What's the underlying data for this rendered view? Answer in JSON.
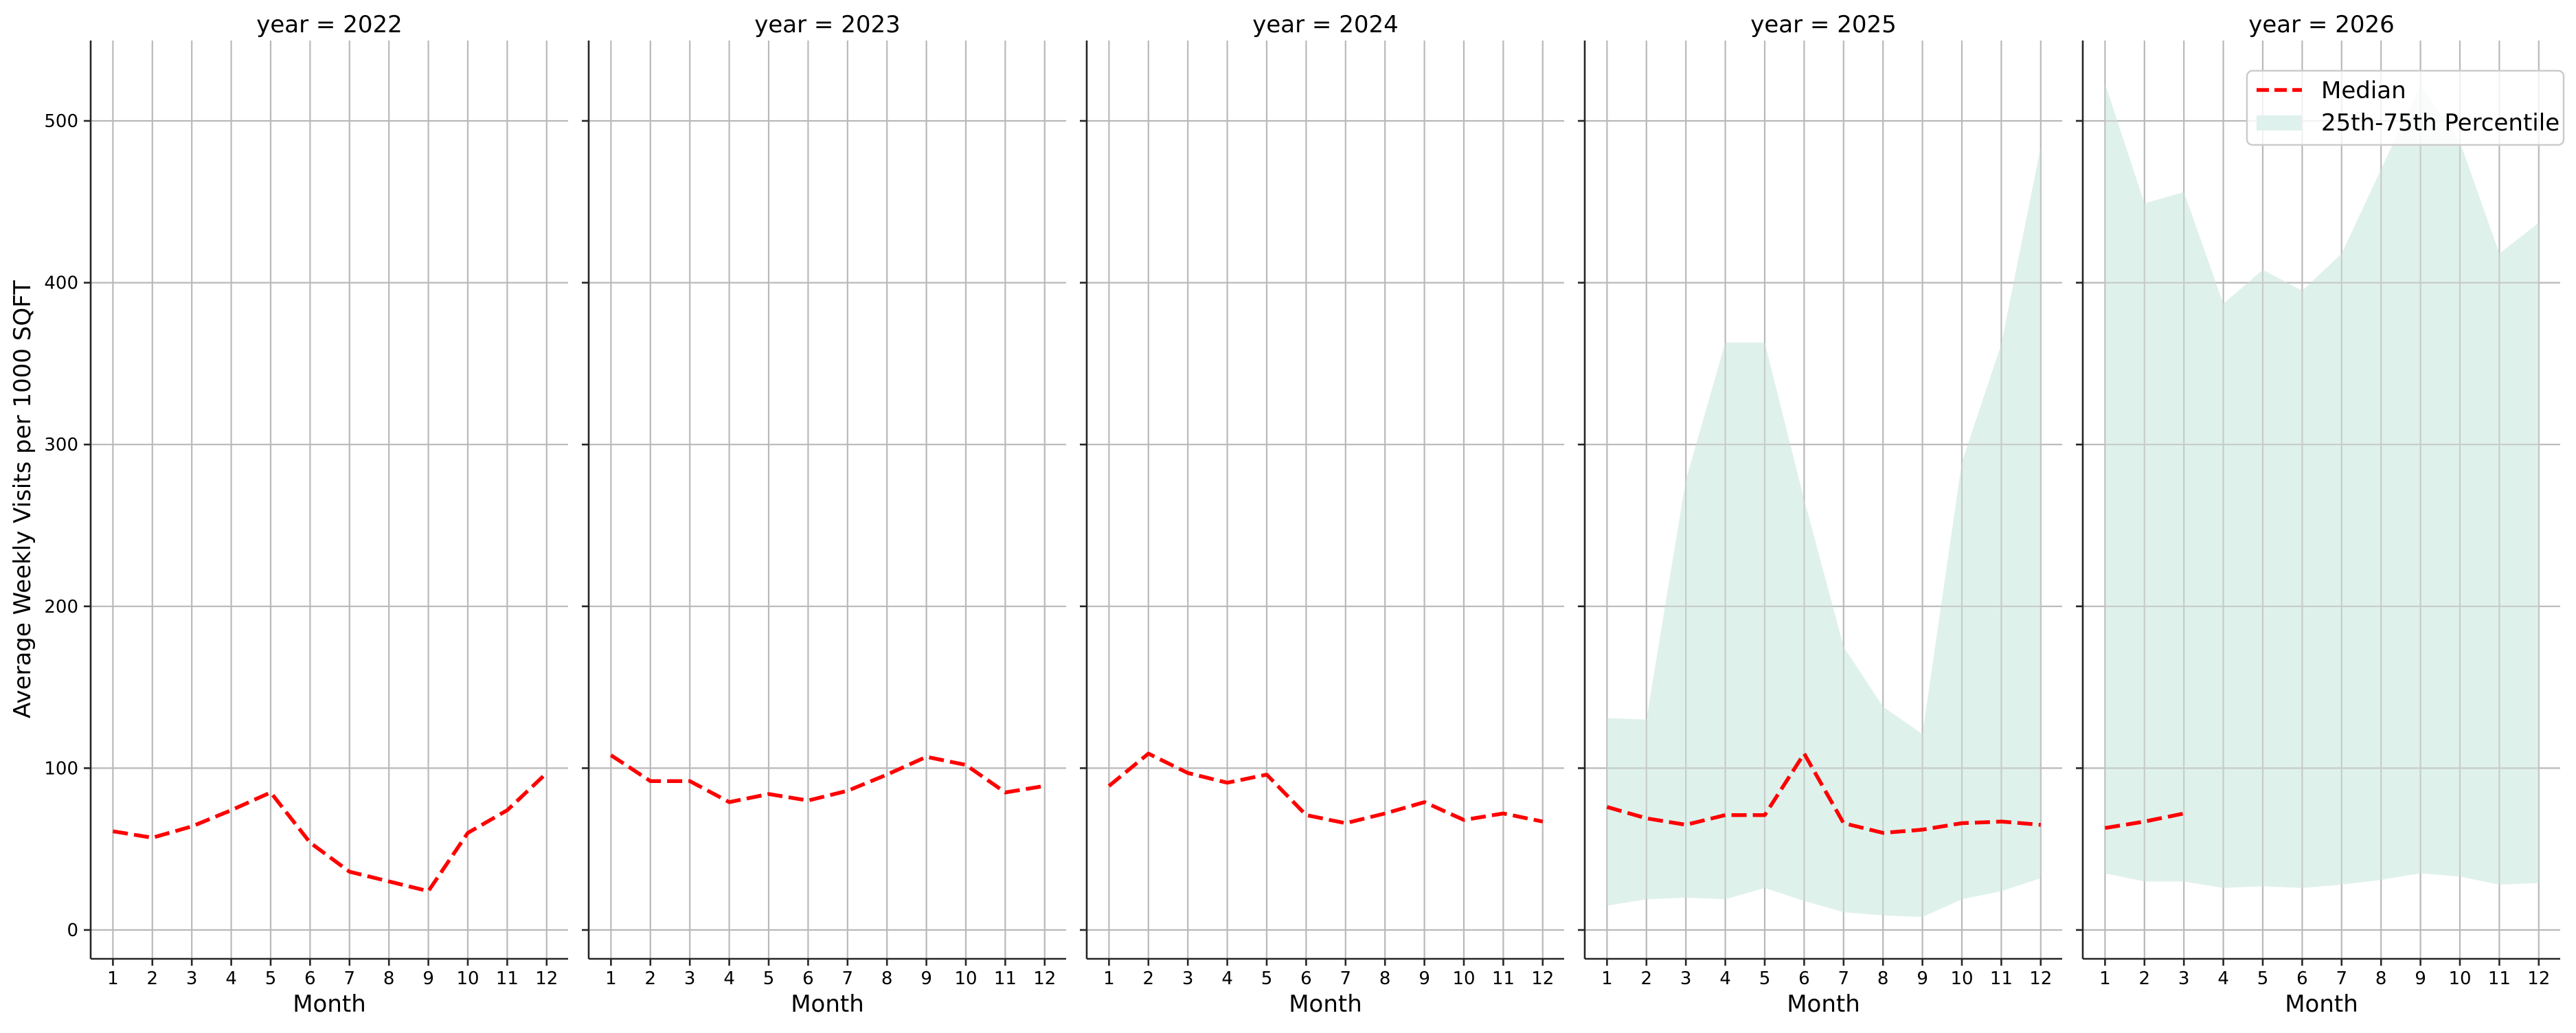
{
  "figure": {
    "ylabel": "Average Weekly Visits per 1000 SQFT",
    "xlabel": "Month",
    "colors": {
      "median": "#ff0000",
      "band": "#dff1ec",
      "grid": "#b9b9b9",
      "spine": "#262626"
    },
    "legend": {
      "median_label": "Median",
      "band_label": "25th-75th Percentile"
    }
  },
  "chart_data": {
    "type": "line",
    "title": "",
    "layout": "facet grid, 5 columns by year, shared y-axis",
    "xlabel": "Month",
    "ylabel": "Average Weekly Visits per 1000 SQFT",
    "x": [
      1,
      2,
      3,
      4,
      5,
      6,
      7,
      8,
      9,
      10,
      11,
      12
    ],
    "x_ticks": [
      "1",
      "2",
      "3",
      "4",
      "5",
      "6",
      "7",
      "8",
      "9",
      "10",
      "11",
      "12"
    ],
    "y_ticks": [
      0,
      100,
      200,
      300,
      400,
      500
    ],
    "ylim": [
      -18,
      550
    ],
    "grid": true,
    "legend_position": "upper right (last panel)",
    "legend": [
      "Median",
      "25th-75th Percentile"
    ],
    "panels": [
      {
        "title": "year = 2022",
        "median": [
          61,
          57,
          64,
          74,
          85,
          54,
          36,
          30,
          24,
          60,
          74,
          97
        ],
        "p25": null,
        "p75": null
      },
      {
        "title": "year = 2023",
        "median": [
          108,
          92,
          92,
          79,
          84,
          80,
          86,
          96,
          107,
          102,
          85,
          89
        ],
        "p25": null,
        "p75": null
      },
      {
        "title": "year = 2024",
        "median": [
          89,
          109,
          97,
          91,
          96,
          71,
          66,
          72,
          79,
          68,
          72,
          67
        ],
        "p25": null,
        "p75": null
      },
      {
        "title": "year = 2025",
        "median": [
          76,
          69,
          65,
          71,
          71,
          109,
          66,
          60,
          62,
          66,
          67,
          65
        ],
        "p25": [
          15,
          19,
          20,
          19,
          26,
          18,
          11,
          9,
          8,
          19,
          24,
          32
        ],
        "p75": [
          131,
          130,
          278,
          363,
          363,
          266,
          175,
          138,
          121,
          289,
          362,
          484
        ]
      },
      {
        "title": "year = 2026",
        "median": [
          63,
          67,
          72,
          null,
          null,
          null,
          null,
          null,
          null,
          null,
          null,
          null
        ],
        "p25": [
          35,
          30,
          30,
          26,
          27,
          26,
          28,
          31,
          35,
          33,
          28,
          29
        ],
        "p75": [
          523,
          449,
          456,
          387,
          408,
          395,
          418,
          470,
          522,
          487,
          418,
          437
        ]
      }
    ]
  }
}
